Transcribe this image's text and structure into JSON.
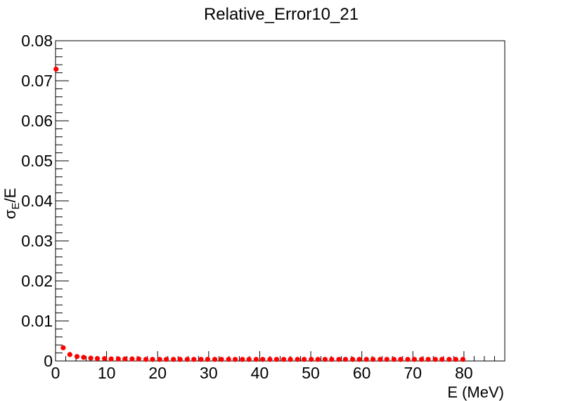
{
  "chart_data": {
    "type": "scatter",
    "title": "Relative_Error10_21",
    "xlabel": "E (MeV)",
    "ylabel_main": "σ",
    "ylabel_sub": "E",
    "ylabel_rest": "/E",
    "xlim": [
      0,
      88
    ],
    "ylim": [
      0,
      0.08
    ],
    "x_ticks": [
      0,
      10,
      20,
      30,
      40,
      50,
      60,
      70,
      80
    ],
    "x_tick_labels": [
      "0",
      "10",
      "20",
      "30",
      "40",
      "50",
      "60",
      "70",
      "80"
    ],
    "y_ticks": [
      0,
      0.01,
      0.02,
      0.03,
      0.04,
      0.05,
      0.06,
      0.07,
      0.08
    ],
    "y_tick_labels": [
      "0",
      "0.01",
      "0.02",
      "0.03",
      "0.04",
      "0.05",
      "0.06",
      "0.07",
      "0.08"
    ],
    "marker_color": "#ff0000",
    "series": [
      {
        "name": "Relative_Error10_21",
        "x": [
          0.1,
          1.5,
          2.8,
          4.2,
          5.5,
          6.9,
          8.2,
          9.6,
          10.9,
          12.3,
          13.6,
          15.0,
          16.3,
          17.7,
          19.0,
          20.4,
          21.7,
          23.1,
          24.4,
          25.8,
          27.1,
          28.5,
          29.8,
          31.2,
          32.5,
          33.9,
          35.2,
          36.6,
          37.9,
          39.3,
          40.6,
          42.0,
          43.3,
          44.7,
          46.0,
          47.4,
          48.7,
          50.1,
          51.4,
          52.8,
          54.1,
          55.5,
          56.8,
          58.2,
          59.5,
          60.9,
          62.2,
          63.6,
          64.9,
          66.3,
          67.6,
          69.0,
          70.3,
          71.7,
          73.0,
          74.4,
          75.7,
          77.1,
          78.4,
          79.8
        ],
        "y": [
          0.0729,
          0.0033,
          0.0016,
          0.0011,
          0.0009,
          0.0007,
          0.0006,
          0.0006,
          0.0005,
          0.0005,
          0.0005,
          0.0005,
          0.0005,
          0.0004,
          0.0004,
          0.0004,
          0.0004,
          0.0004,
          0.0004,
          0.0004,
          0.0004,
          0.0004,
          0.0004,
          0.0004,
          0.0004,
          0.0004,
          0.0004,
          0.0004,
          0.0004,
          0.0004,
          0.0004,
          0.0004,
          0.0004,
          0.0004,
          0.0004,
          0.0004,
          0.0004,
          0.0004,
          0.0004,
          0.0004,
          0.0004,
          0.0004,
          0.0004,
          0.0004,
          0.0004,
          0.0004,
          0.0004,
          0.0004,
          0.0004,
          0.0004,
          0.0004,
          0.0004,
          0.0004,
          0.0004,
          0.0004,
          0.0004,
          0.0004,
          0.0004,
          0.0004,
          0.0004
        ]
      }
    ]
  }
}
